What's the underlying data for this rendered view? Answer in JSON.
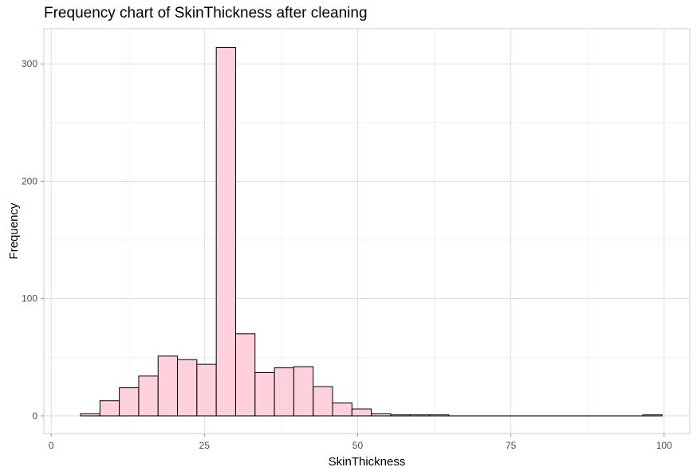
{
  "chart_data": {
    "type": "bar",
    "title": "Frequency chart of SkinThickness after cleaning",
    "xlabel": "SkinThickness",
    "ylabel": "Frequency",
    "xlim": [
      -1.2,
      104.2
    ],
    "ylim": [
      -15,
      330
    ],
    "x_ticks": [
      0,
      25,
      50,
      75,
      100
    ],
    "x_tick_labels": [
      "0",
      "25",
      "50",
      "75",
      "100"
    ],
    "y_ticks": [
      0,
      100,
      200,
      300
    ],
    "y_tick_labels": [
      "0",
      "100",
      "200",
      "300"
    ],
    "grid": true,
    "bin_width": 3.16,
    "bar_fill": "#FFD1DC",
    "bar_stroke": "#000000",
    "bins": [
      {
        "x": 6.37,
        "count": 2
      },
      {
        "x": 9.53,
        "count": 13
      },
      {
        "x": 12.69,
        "count": 24
      },
      {
        "x": 15.86,
        "count": 34
      },
      {
        "x": 19.02,
        "count": 51
      },
      {
        "x": 22.18,
        "count": 48
      },
      {
        "x": 25.35,
        "count": 44
      },
      {
        "x": 28.51,
        "count": 314
      },
      {
        "x": 31.67,
        "count": 70
      },
      {
        "x": 34.84,
        "count": 37
      },
      {
        "x": 38.0,
        "count": 41
      },
      {
        "x": 41.16,
        "count": 42
      },
      {
        "x": 44.33,
        "count": 25
      },
      {
        "x": 47.49,
        "count": 11
      },
      {
        "x": 50.65,
        "count": 6
      },
      {
        "x": 53.82,
        "count": 2
      },
      {
        "x": 56.98,
        "count": 1
      },
      {
        "x": 60.14,
        "count": 1
      },
      {
        "x": 63.31,
        "count": 1
      },
      {
        "x": 66.47,
        "count": 0
      },
      {
        "x": 69.63,
        "count": 0
      },
      {
        "x": 72.8,
        "count": 0
      },
      {
        "x": 75.96,
        "count": 0
      },
      {
        "x": 79.12,
        "count": 0
      },
      {
        "x": 82.29,
        "count": 0
      },
      {
        "x": 85.45,
        "count": 0
      },
      {
        "x": 88.61,
        "count": 0
      },
      {
        "x": 91.78,
        "count": 0
      },
      {
        "x": 94.94,
        "count": 0
      },
      {
        "x": 98.1,
        "count": 1
      }
    ]
  }
}
